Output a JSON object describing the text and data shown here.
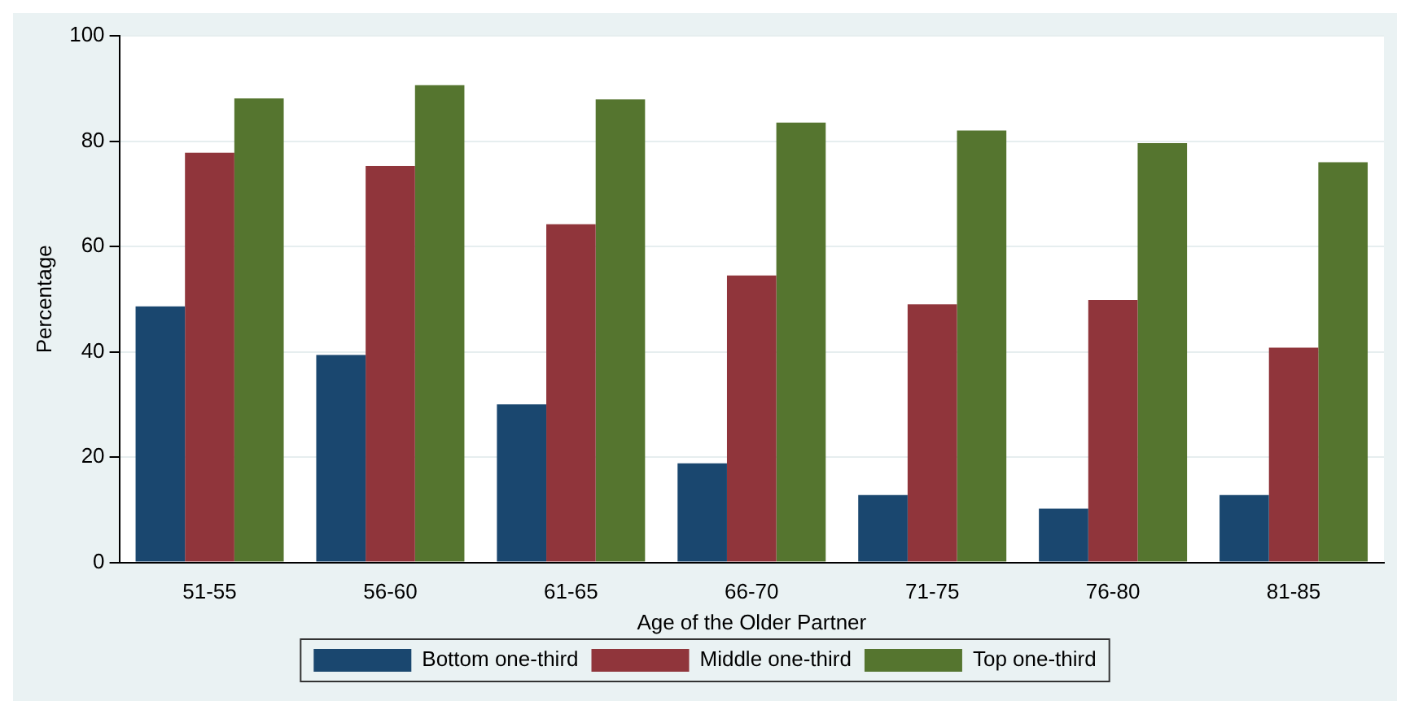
{
  "chart_data": {
    "type": "bar",
    "xlabel": "Age of the Older Partner",
    "ylabel": "Percentage",
    "categories": [
      "51-55",
      "56-60",
      "61-65",
      "66-70",
      "71-75",
      "76-80",
      "81-85"
    ],
    "series": [
      {
        "name": "Bottom one-third",
        "color": "#1a476f",
        "values": [
          48.6,
          39.4,
          30.0,
          18.8,
          12.8,
          10.2,
          12.8
        ]
      },
      {
        "name": "Middle one-third",
        "color": "#90353b",
        "values": [
          77.8,
          75.3,
          64.2,
          54.5,
          49.0,
          49.8,
          40.8
        ]
      },
      {
        "name": "Top one-third",
        "color": "#55752f",
        "values": [
          88.1,
          90.6,
          87.9,
          83.5,
          82.0,
          79.6,
          76.0
        ]
      }
    ],
    "ylim": [
      0,
      100
    ],
    "yticks": [
      0,
      20,
      40,
      60,
      80,
      100
    ],
    "grid": "y",
    "legend": "bottom"
  }
}
